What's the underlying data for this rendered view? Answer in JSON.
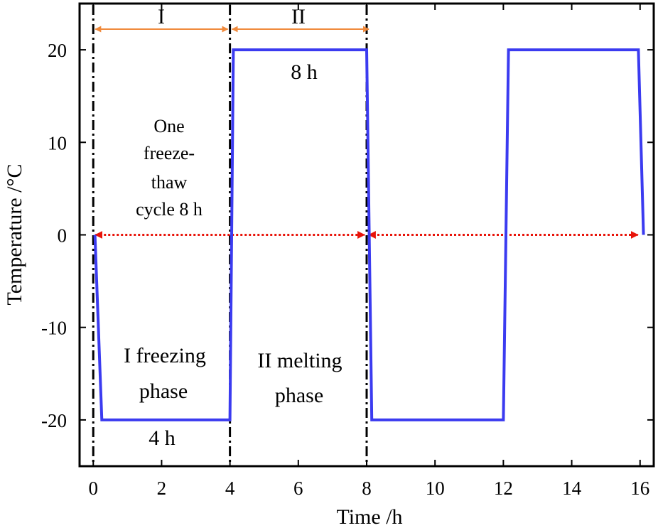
{
  "chart_data": {
    "type": "line",
    "xlabel": "Time /h",
    "ylabel": "Temperature /°C",
    "xlim": [
      -0.4,
      16.4
    ],
    "ylim": [
      -25,
      25
    ],
    "x_ticks": [
      0,
      2,
      4,
      6,
      8,
      10,
      12,
      14,
      16
    ],
    "y_ticks": [
      -20,
      -10,
      0,
      10,
      20
    ],
    "x_tick_labels": [
      "0",
      "2",
      "4",
      "6",
      "8",
      "10",
      "12",
      "14",
      "16"
    ],
    "y_tick_labels": [
      "-20",
      "-10",
      "0",
      "10",
      "20"
    ],
    "grid": false,
    "legend": "none",
    "series": [
      {
        "color": "#3b3bf0",
        "x": [
          0.05,
          0.25,
          4.0,
          4.1,
          8.0,
          8.15,
          12.0,
          12.15,
          15.95,
          16.1
        ],
        "y": [
          0,
          -20,
          -20,
          20,
          20,
          -20,
          -20,
          20,
          20,
          0
        ]
      }
    ],
    "vertical_lines": [
      0,
      4,
      8
    ],
    "annotations": {
      "phase_I_label": "I",
      "phase_II_label": "II",
      "duration_8h": "8 h",
      "duration_4h": "4 h",
      "cycle_line1": "One",
      "cycle_line2": "freeze-",
      "cycle_line3": "thaw",
      "cycle_line4": "cycle 8 h",
      "freezing_line1": "I freezing",
      "freezing_line2": "phase",
      "melting_line1": "II melting",
      "melting_line2": "phase"
    },
    "colors": {
      "series": "#3b3bf0",
      "phase_arrows": "#f08a3c",
      "cycle_arrows": "#e8140a",
      "vlines": "#000000"
    }
  }
}
